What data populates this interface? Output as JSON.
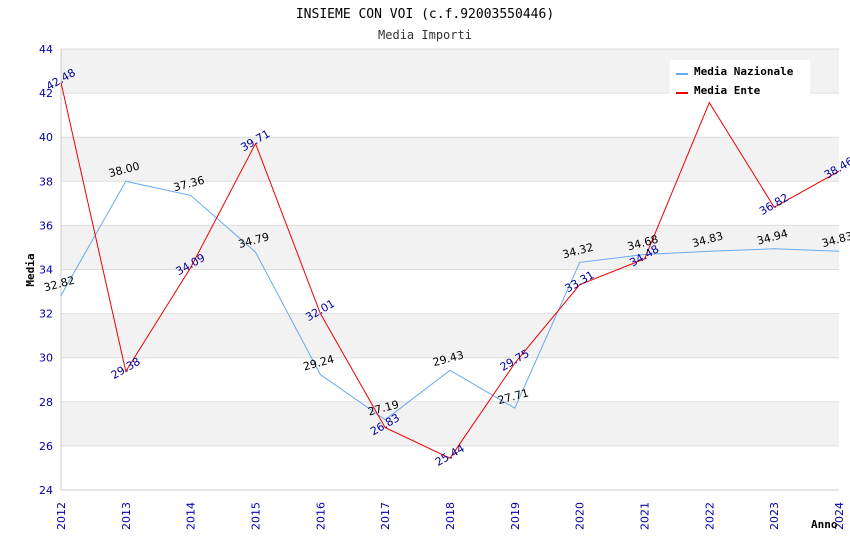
{
  "colors": {
    "background": "#ffffff",
    "band_gray": "#f2f2f2",
    "grid": "#dddddd",
    "axis": "#cccccc",
    "tick_text": "#0000aa"
  },
  "chart_data": {
    "type": "line",
    "title": "INSIEME CON VOI (c.f.92003550446)",
    "subtitle": "Media Importi",
    "xlabel": "Anno",
    "ylabel": "Media",
    "ylim": [
      24,
      44
    ],
    "yticks": [
      24,
      26,
      28,
      30,
      32,
      34,
      36,
      38,
      40,
      42,
      44
    ],
    "categories": [
      "2012",
      "2013",
      "2014",
      "2015",
      "2016",
      "2017",
      "2018",
      "2019",
      "2020",
      "2021",
      "2022",
      "2023",
      "2024"
    ],
    "grid": true,
    "legend_position": "top-right",
    "series": [
      {
        "name": "Media Nazionale",
        "color": "#66aaee",
        "label_color": "#000000",
        "label_style": "horizontal",
        "values": [
          32.82,
          38.0,
          37.36,
          34.79,
          29.24,
          27.19,
          29.43,
          27.71,
          34.32,
          34.68,
          34.83,
          34.94,
          34.83
        ],
        "labels": [
          "32.82",
          "38.00",
          "37.36",
          "34.79",
          "29.24",
          "27.19",
          "29.43",
          "27.71",
          "34.32",
          "34.68",
          "34.83",
          "34.94",
          "34.83"
        ]
      },
      {
        "name": "Media Ente",
        "color": "#ee0000",
        "label_color": "#000099",
        "label_style": "rotated",
        "values": [
          42.48,
          29.38,
          34.09,
          39.71,
          32.01,
          26.83,
          25.44,
          29.75,
          33.31,
          34.48,
          41.57,
          36.82,
          38.46
        ],
        "labels": [
          "42.48",
          "29.38",
          "34.09",
          "39.71",
          "32.01",
          "26.83",
          "25.44",
          "29.75",
          "33.31",
          "34.48",
          "",
          "36.82",
          "38.46"
        ]
      }
    ]
  }
}
